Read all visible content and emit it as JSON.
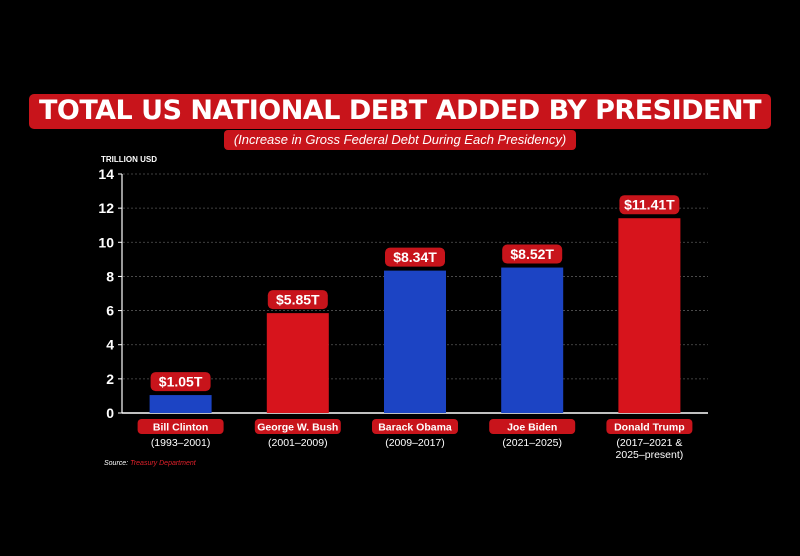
{
  "chart_data": {
    "type": "bar",
    "title": "TOTAL US NATIONAL DEBT ADDED BY PRESIDENT",
    "subtitle": "(Increase in Gross Federal Debt During Each Presidency)",
    "ylabel": "TRILLION USD",
    "ylim": [
      0,
      14
    ],
    "yticks": [
      0,
      2,
      4,
      6,
      8,
      10,
      12,
      14
    ],
    "grid": true,
    "categories": [
      "Bill Clinton",
      "George W. Bush",
      "Barack Obama",
      "Joe Biden",
      "Donald Trump"
    ],
    "terms": [
      "(1993–2001)",
      "(2001–2009)",
      "(2009–2017)",
      "(2021–2025)",
      "(2017–2021 &\n2025–present)"
    ],
    "values": [
      1.05,
      5.85,
      8.34,
      8.52,
      11.41
    ],
    "value_labels": [
      "$1.05T",
      "$5.85T",
      "$8.34T",
      "$8.52T",
      "$11.41T"
    ],
    "bar_colors": [
      "#1c44c4",
      "#d7141c",
      "#1c44c4",
      "#1c44c4",
      "#d7141c"
    ]
  },
  "source": {
    "label": "Source:",
    "value": "Treasury Department"
  },
  "colors": {
    "background": "#000000",
    "label_red": "#c8141b",
    "democrat_blue": "#1c44c4",
    "republican_red": "#d7141c"
  }
}
